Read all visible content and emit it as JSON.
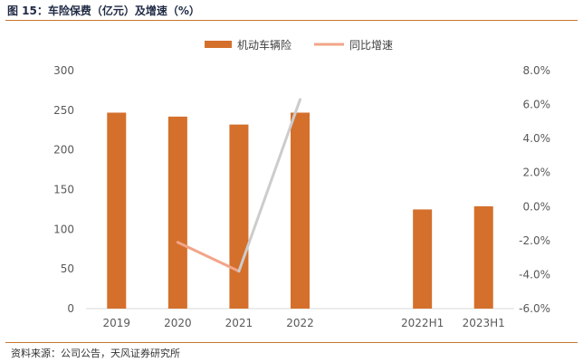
{
  "header": {
    "title": "图 15：车险保费（亿元）及增速（%）"
  },
  "footer": {
    "source": "资料来源：公司公告，天风证券研究所"
  },
  "colors": {
    "bar": "#d4702c",
    "line": "#f2a58a",
    "rule": "#c9762f",
    "axis": "#d9d9d9"
  },
  "chart_data": {
    "type": "bar",
    "categories": [
      "2019",
      "2020",
      "2021",
      "2022",
      "",
      "2022H1",
      "2023H1"
    ],
    "series": [
      {
        "name": "机动车辆险",
        "type": "bar",
        "axis": "left",
        "values": [
          247,
          242,
          232,
          247,
          null,
          125,
          129
        ]
      },
      {
        "name": "同比增速",
        "type": "line",
        "axis": "right",
        "values": [
          null,
          -2.1,
          -3.8,
          6.3,
          null,
          null,
          null
        ]
      }
    ],
    "ylim": [
      0,
      300
    ],
    "y_ticks": [
      "0",
      "50",
      "100",
      "150",
      "200",
      "250",
      "300"
    ],
    "y2lim": [
      -6,
      8
    ],
    "y2_ticks": [
      "-6.0%",
      "-4.0%",
      "-2.0%",
      "0.0%",
      "2.0%",
      "4.0%",
      "6.0%",
      "8.0%"
    ],
    "legend": [
      "机动车辆险",
      "同比增速"
    ],
    "legend_position": "top",
    "grid": false
  }
}
